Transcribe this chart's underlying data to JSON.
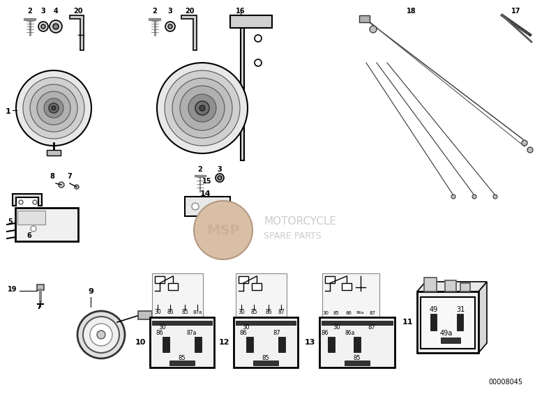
{
  "bg_color": "#ffffff",
  "line_color": "#000000",
  "part_number": "00008045",
  "watermark_color": [
    0.8,
    0.7,
    0.6,
    0.3
  ],
  "watermark_text1": "MOTORCYCLE",
  "watermark_text2": "SPARE PARTS",
  "relay10_pins": [
    "86",
    "87a",
    "30",
    "85"
  ],
  "relay12_pins": [
    "86",
    "87",
    "30",
    "85"
  ],
  "relay13_pins": [
    "86",
    "87",
    "86a",
    "30",
    "85"
  ],
  "relay11_pins": [
    "49",
    "31",
    "49a"
  ]
}
